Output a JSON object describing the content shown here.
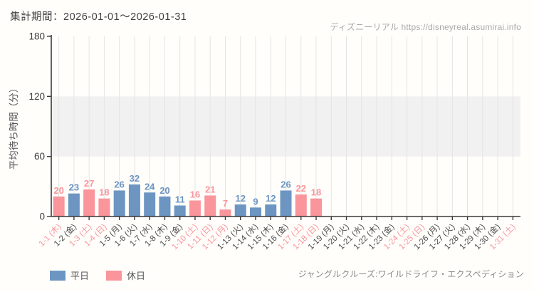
{
  "header": {
    "title": "集計期間：2026-01-01～2026-01-31",
    "watermark": "ディズニーリアル https://disneyreal.asumirai.info"
  },
  "legend": {
    "items": [
      {
        "label": "平日",
        "color": "#6c95c2"
      },
      {
        "label": "休日",
        "color": "#f9959b"
      }
    ]
  },
  "footer": {
    "attraction": "ジャングルクルーズ:ワイルドライフ・エクスペディション"
  },
  "chart_data": {
    "type": "bar",
    "title": "集計期間：2026-01-01～2026-01-31",
    "xlabel": "",
    "ylabel": "平均待ち時間（分）",
    "ylim": [
      0,
      180
    ],
    "yticks": [
      0,
      60,
      120,
      180
    ],
    "grid": "vertical-per-category",
    "shaded_band": {
      "from": 60,
      "to": 120,
      "color": "#f1f1f1"
    },
    "legend_position": "bottom-left",
    "categories": [
      "1-1 (木)",
      "1-2 (金)",
      "1-3 (土)",
      "1-4 (日)",
      "1-5 (月)",
      "1-6 (火)",
      "1-7 (水)",
      "1-8 (木)",
      "1-9 (金)",
      "1-10 (土)",
      "1-11 (日)",
      "1-12 (月)",
      "1-13 (火)",
      "1-14 (水)",
      "1-15 (木)",
      "1-16 (金)",
      "1-17 (土)",
      "1-18 (日)",
      "1-19 (月)",
      "1-20 (火)",
      "1-21 (水)",
      "1-22 (木)",
      "1-23 (金)",
      "1-24 (土)",
      "1-25 (日)",
      "1-26 (月)",
      "1-27 (火)",
      "1-28 (水)",
      "1-29 (木)",
      "1-30 (金)",
      "1-31 (土)"
    ],
    "is_holiday": [
      true,
      false,
      true,
      true,
      false,
      false,
      false,
      false,
      false,
      true,
      true,
      true,
      false,
      false,
      false,
      false,
      true,
      true,
      false,
      false,
      false,
      false,
      false,
      true,
      true,
      false,
      false,
      false,
      false,
      false,
      true
    ],
    "values": [
      20,
      23,
      27,
      18,
      26,
      32,
      24,
      20,
      11,
      16,
      21,
      7,
      12,
      9,
      12,
      26,
      22,
      18,
      null,
      null,
      null,
      null,
      null,
      null,
      null,
      null,
      null,
      null,
      null,
      null,
      null
    ],
    "series_colors": {
      "weekday": "#6c95c2",
      "holiday": "#f9959b"
    },
    "label_colors": {
      "weekday": "#4a4a4a",
      "holiday": "#f9959b"
    }
  }
}
